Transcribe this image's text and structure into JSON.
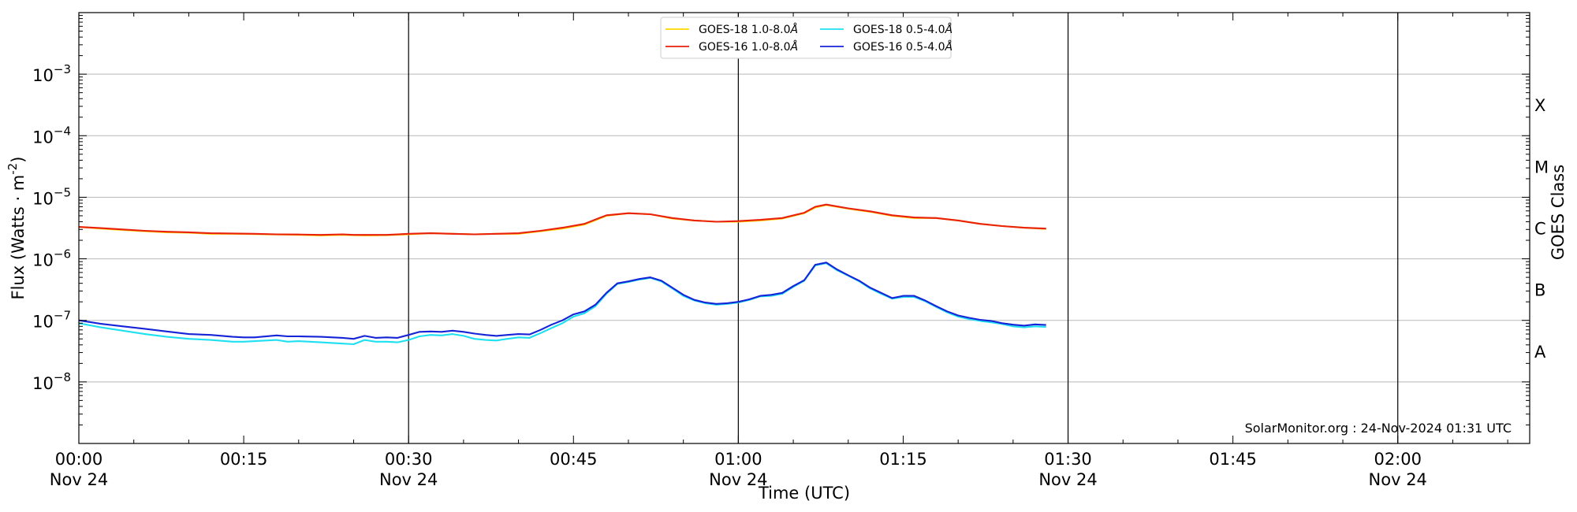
{
  "chart_data": {
    "type": "line",
    "xlabel": "Time (UTC)",
    "ylabel": "Flux (Watts · m",
    "ylabel_sup": "-2",
    "ylabel_close": ")",
    "right_label": "GOES Class",
    "watermark": "SolarMonitor.org : 24-Nov-2024 01:31 UTC",
    "xlim_minutes": [
      0,
      132
    ],
    "ylim_log10": [
      -9,
      -2
    ],
    "yscale": "log",
    "grid": "horizontal",
    "y_ticks": [
      {
        "exp": -8,
        "base": "10",
        "sup": "−8"
      },
      {
        "exp": -7,
        "base": "10",
        "sup": "−7"
      },
      {
        "exp": -6,
        "base": "10",
        "sup": "−6"
      },
      {
        "exp": -5,
        "base": "10",
        "sup": "−5"
      },
      {
        "exp": -4,
        "base": "10",
        "sup": "−4"
      },
      {
        "exp": -3,
        "base": "10",
        "sup": "−3"
      }
    ],
    "x_ticks": [
      {
        "minute": 0,
        "line1": "00:00",
        "line2": "Nov 24"
      },
      {
        "minute": 15,
        "line1": "00:15",
        "line2": ""
      },
      {
        "minute": 30,
        "line1": "00:30",
        "line2": "Nov 24"
      },
      {
        "minute": 45,
        "line1": "00:45",
        "line2": ""
      },
      {
        "minute": 60,
        "line1": "01:00",
        "line2": "Nov 24"
      },
      {
        "minute": 75,
        "line1": "01:15",
        "line2": ""
      },
      {
        "minute": 90,
        "line1": "01:30",
        "line2": "Nov 24"
      },
      {
        "minute": 105,
        "line1": "01:45",
        "line2": ""
      },
      {
        "minute": 120,
        "line1": "02:00",
        "line2": "Nov 24"
      }
    ],
    "vertical_lines_minutes": [
      30,
      60,
      90,
      120
    ],
    "goes_classes": [
      {
        "label": "A",
        "log10": -7.5
      },
      {
        "label": "B",
        "log10": -6.5
      },
      {
        "label": "C",
        "log10": -5.5
      },
      {
        "label": "M",
        "log10": -4.5
      },
      {
        "label": "X",
        "log10": -3.5
      }
    ],
    "legend_position": "top-center",
    "series": [
      {
        "name": "GOES-18 1.0-8.0",
        "unit": "Å",
        "color": "#ffd700",
        "minutes": [
          0,
          2,
          4,
          6,
          8,
          10,
          12,
          14,
          16,
          18,
          20,
          22,
          24,
          25,
          26,
          28,
          30,
          32,
          34,
          36,
          38,
          40,
          42,
          44,
          46,
          48,
          50,
          52,
          54,
          56,
          58,
          60,
          62,
          64,
          66,
          67,
          68,
          70,
          72,
          74,
          76,
          78,
          80,
          82,
          84,
          86,
          88
        ],
        "values": [
          3.3e-06,
          3.1e-06,
          2.95e-06,
          2.8e-06,
          2.7e-06,
          2.65e-06,
          2.55e-06,
          2.55e-06,
          2.52e-06,
          2.48e-06,
          2.45e-06,
          2.4e-06,
          2.45e-06,
          2.42e-06,
          2.4e-06,
          2.42e-06,
          2.5e-06,
          2.6e-06,
          2.55e-06,
          2.5e-06,
          2.55e-06,
          2.55e-06,
          2.8e-06,
          3.1e-06,
          3.6e-06,
          5e-06,
          5.5e-06,
          5.3e-06,
          4.5e-06,
          4.2e-06,
          4e-06,
          4e-06,
          4.2e-06,
          4.5e-06,
          5.5e-06,
          6.8e-06,
          7.5e-06,
          6.5e-06,
          5.8e-06,
          5e-06,
          4.6e-06,
          4.6e-06,
          4.2e-06,
          3.7e-06,
          3.4e-06,
          3.2e-06,
          3.05e-06
        ]
      },
      {
        "name": "GOES-16 1.0-8.0",
        "unit": "Å",
        "color": "#e8200c",
        "minutes": [
          0,
          2,
          4,
          6,
          8,
          10,
          12,
          14,
          16,
          18,
          20,
          22,
          24,
          25,
          26,
          28,
          30,
          32,
          34,
          36,
          38,
          40,
          42,
          44,
          46,
          48,
          50,
          52,
          54,
          56,
          58,
          60,
          62,
          64,
          66,
          67,
          68,
          70,
          72,
          74,
          76,
          78,
          80,
          82,
          84,
          86,
          88
        ],
        "values": [
          3.3e-06,
          3.15e-06,
          3e-06,
          2.85e-06,
          2.75e-06,
          2.7e-06,
          2.6e-06,
          2.58e-06,
          2.55e-06,
          2.5e-06,
          2.48e-06,
          2.45e-06,
          2.5e-06,
          2.45e-06,
          2.45e-06,
          2.45e-06,
          2.55e-06,
          2.6e-06,
          2.55e-06,
          2.5e-06,
          2.55e-06,
          2.6e-06,
          2.85e-06,
          3.2e-06,
          3.7e-06,
          5.1e-06,
          5.5e-06,
          5.3e-06,
          4.6e-06,
          4.2e-06,
          4e-06,
          4.1e-06,
          4.3e-06,
          4.6e-06,
          5.6e-06,
          7e-06,
          7.6e-06,
          6.6e-06,
          5.9e-06,
          5.1e-06,
          4.7e-06,
          4.6e-06,
          4.2e-06,
          3.7e-06,
          3.4e-06,
          3.2e-06,
          3.1e-06
        ]
      },
      {
        "name": "GOES-18 0.5-4.0",
        "unit": "Å",
        "color": "#1ee0f0",
        "minutes": [
          0,
          2,
          4,
          6,
          8,
          10,
          12,
          14,
          15,
          16,
          18,
          19,
          20,
          22,
          24,
          25,
          26,
          27,
          28,
          29,
          30,
          31,
          32,
          33,
          34,
          35,
          36,
          37,
          38,
          39,
          40,
          41,
          42,
          43,
          44,
          45,
          46,
          47,
          48,
          49,
          50,
          51,
          52,
          53,
          54,
          55,
          56,
          57,
          58,
          59,
          60,
          61,
          62,
          63,
          64,
          65,
          66,
          67,
          68,
          69,
          70,
          71,
          72,
          73,
          74,
          75,
          76,
          77,
          78,
          79,
          80,
          81,
          82,
          83,
          84,
          85,
          86,
          87,
          88
        ],
        "values": [
          9e-08,
          7.7e-08,
          6.8e-08,
          6e-08,
          5.4e-08,
          5e-08,
          4.8e-08,
          4.5e-08,
          4.5e-08,
          4.6e-08,
          4.8e-08,
          4.5e-08,
          4.6e-08,
          4.4e-08,
          4.2e-08,
          4.1e-08,
          4.8e-08,
          4.5e-08,
          4.5e-08,
          4.4e-08,
          4.8e-08,
          5.5e-08,
          5.8e-08,
          5.7e-08,
          6e-08,
          5.6e-08,
          5e-08,
          4.8e-08,
          4.7e-08,
          5e-08,
          5.3e-08,
          5.2e-08,
          6.2e-08,
          7.5e-08,
          9e-08,
          1.15e-07,
          1.3e-07,
          1.7e-07,
          2.7e-07,
          3.9e-07,
          4.2e-07,
          4.6e-07,
          4.9e-07,
          4.3e-07,
          3.3e-07,
          2.5e-07,
          2.1e-07,
          1.9e-07,
          1.8e-07,
          1.85e-07,
          1.95e-07,
          2.15e-07,
          2.45e-07,
          2.5e-07,
          2.7e-07,
          3.5e-07,
          4.4e-07,
          7.8e-07,
          8.5e-07,
          6.5e-07,
          5.3e-07,
          4.3e-07,
          3.3e-07,
          2.7e-07,
          2.25e-07,
          2.4e-07,
          2.4e-07,
          2.05e-07,
          1.65e-07,
          1.35e-07,
          1.15e-07,
          1.05e-07,
          9.8e-08,
          9.3e-08,
          8.7e-08,
          8e-08,
          7.7e-08,
          8e-08,
          7.8e-08
        ]
      },
      {
        "name": "GOES-16 0.5-4.0",
        "unit": "Å",
        "color": "#1624d8",
        "minutes": [
          0,
          2,
          4,
          6,
          8,
          10,
          12,
          14,
          15,
          16,
          18,
          19,
          20,
          22,
          24,
          25,
          26,
          27,
          28,
          29,
          30,
          31,
          32,
          33,
          34,
          35,
          36,
          37,
          38,
          39,
          40,
          41,
          42,
          43,
          44,
          45,
          46,
          47,
          48,
          49,
          50,
          51,
          52,
          53,
          54,
          55,
          56,
          57,
          58,
          59,
          60,
          61,
          62,
          63,
          64,
          65,
          66,
          67,
          68,
          69,
          70,
          71,
          72,
          73,
          74,
          75,
          76,
          77,
          78,
          79,
          80,
          81,
          82,
          83,
          84,
          85,
          86,
          87,
          88
        ],
        "values": [
          1e-07,
          8.8e-08,
          8e-08,
          7.3e-08,
          6.6e-08,
          6e-08,
          5.8e-08,
          5.4e-08,
          5.3e-08,
          5.3e-08,
          5.7e-08,
          5.5e-08,
          5.5e-08,
          5.4e-08,
          5.2e-08,
          5e-08,
          5.6e-08,
          5.2e-08,
          5.3e-08,
          5.2e-08,
          5.8e-08,
          6.5e-08,
          6.6e-08,
          6.5e-08,
          6.8e-08,
          6.5e-08,
          6.1e-08,
          5.8e-08,
          5.6e-08,
          5.8e-08,
          6e-08,
          5.9e-08,
          7e-08,
          8.5e-08,
          1e-07,
          1.25e-07,
          1.4e-07,
          1.8e-07,
          2.8e-07,
          4e-07,
          4.3e-07,
          4.7e-07,
          5e-07,
          4.4e-07,
          3.4e-07,
          2.6e-07,
          2.15e-07,
          1.95e-07,
          1.85e-07,
          1.9e-07,
          2e-07,
          2.2e-07,
          2.5e-07,
          2.6e-07,
          2.8e-07,
          3.6e-07,
          4.5e-07,
          8e-07,
          8.7e-07,
          6.7e-07,
          5.4e-07,
          4.4e-07,
          3.4e-07,
          2.8e-07,
          2.3e-07,
          2.5e-07,
          2.5e-07,
          2.1e-07,
          1.7e-07,
          1.4e-07,
          1.2e-07,
          1.1e-07,
          1.02e-07,
          9.8e-08,
          9e-08,
          8.5e-08,
          8.2e-08,
          8.6e-08,
          8.4e-08
        ]
      }
    ]
  }
}
